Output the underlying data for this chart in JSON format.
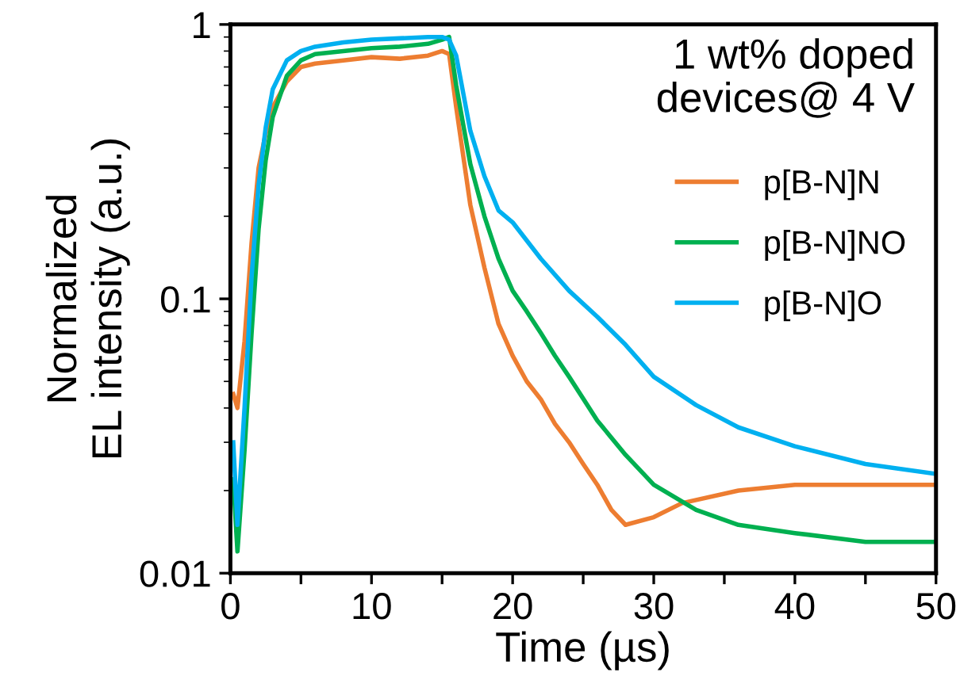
{
  "chart_data": {
    "type": "line",
    "xlabel": "Time (µs)",
    "ylabel": "Normalized\nEL intensity (a.u.)",
    "log": "y",
    "xlim": [
      0,
      50
    ],
    "ylim": [
      0.01,
      1
    ],
    "xticks": [
      0,
      {
        "value": 5,
        "label": null
      },
      10,
      {
        "value": 15,
        "label": null
      },
      20,
      {
        "value": 25,
        "label": null
      },
      30,
      {
        "value": 35,
        "label": null
      },
      40,
      {
        "value": 45,
        "label": null
      },
      50
    ],
    "yticks": [
      0.01,
      0.1,
      1
    ],
    "grid": false,
    "legend": "top right",
    "marker": "none",
    "line_style": "solid",
    "annotations": [
      "1 wt% doped\ndevices@ 4 V"
    ],
    "series": [
      {
        "name": "p[B-N]N",
        "color": "#ed7d31",
        "x": [
          0.2,
          0.5,
          1,
          1.5,
          2,
          2.5,
          3,
          4,
          5,
          6,
          8,
          10,
          12,
          14,
          15,
          15.5,
          16,
          17,
          18,
          19,
          20,
          21,
          22,
          23,
          24,
          25,
          26,
          27,
          28,
          30,
          32,
          36,
          40,
          45,
          50
        ],
        "values": [
          0.045,
          0.04,
          0.07,
          0.16,
          0.3,
          0.4,
          0.5,
          0.62,
          0.7,
          0.72,
          0.74,
          0.76,
          0.75,
          0.77,
          0.8,
          0.78,
          0.5,
          0.22,
          0.13,
          0.081,
          0.062,
          0.05,
          0.043,
          0.035,
          0.03,
          0.025,
          0.021,
          0.017,
          0.015,
          0.016,
          0.018,
          0.02,
          0.021,
          0.021,
          0.021
        ]
      },
      {
        "name": "p[B-N]NO",
        "color": "#00b050",
        "x": [
          0.2,
          0.5,
          1,
          1.5,
          2,
          2.5,
          3,
          4,
          5,
          6,
          8,
          10,
          12,
          14,
          15,
          15.5,
          16,
          17,
          18,
          19,
          20,
          21,
          22,
          23,
          24,
          26,
          28,
          30,
          33,
          36,
          40,
          45,
          50
        ],
        "values": [
          0.022,
          0.012,
          0.028,
          0.075,
          0.18,
          0.32,
          0.46,
          0.65,
          0.74,
          0.78,
          0.8,
          0.82,
          0.83,
          0.85,
          0.88,
          0.9,
          0.6,
          0.31,
          0.2,
          0.14,
          0.107,
          0.09,
          0.075,
          0.062,
          0.052,
          0.036,
          0.027,
          0.021,
          0.017,
          0.015,
          0.014,
          0.013,
          0.013
        ]
      },
      {
        "name": "p[B-N]O",
        "color": "#00b0f0",
        "x": [
          0.2,
          0.5,
          1,
          1.5,
          2,
          2.5,
          3,
          4,
          5,
          6,
          8,
          10,
          12,
          14,
          15,
          15.5,
          16,
          17,
          18,
          19,
          20,
          22,
          24,
          26,
          28,
          30,
          33,
          36,
          40,
          45,
          50
        ],
        "values": [
          0.03,
          0.015,
          0.04,
          0.12,
          0.26,
          0.42,
          0.58,
          0.74,
          0.8,
          0.83,
          0.86,
          0.88,
          0.89,
          0.9,
          0.9,
          0.88,
          0.77,
          0.41,
          0.28,
          0.21,
          0.19,
          0.14,
          0.107,
          0.086,
          0.068,
          0.052,
          0.041,
          0.034,
          0.029,
          0.025,
          0.023
        ]
      }
    ]
  }
}
